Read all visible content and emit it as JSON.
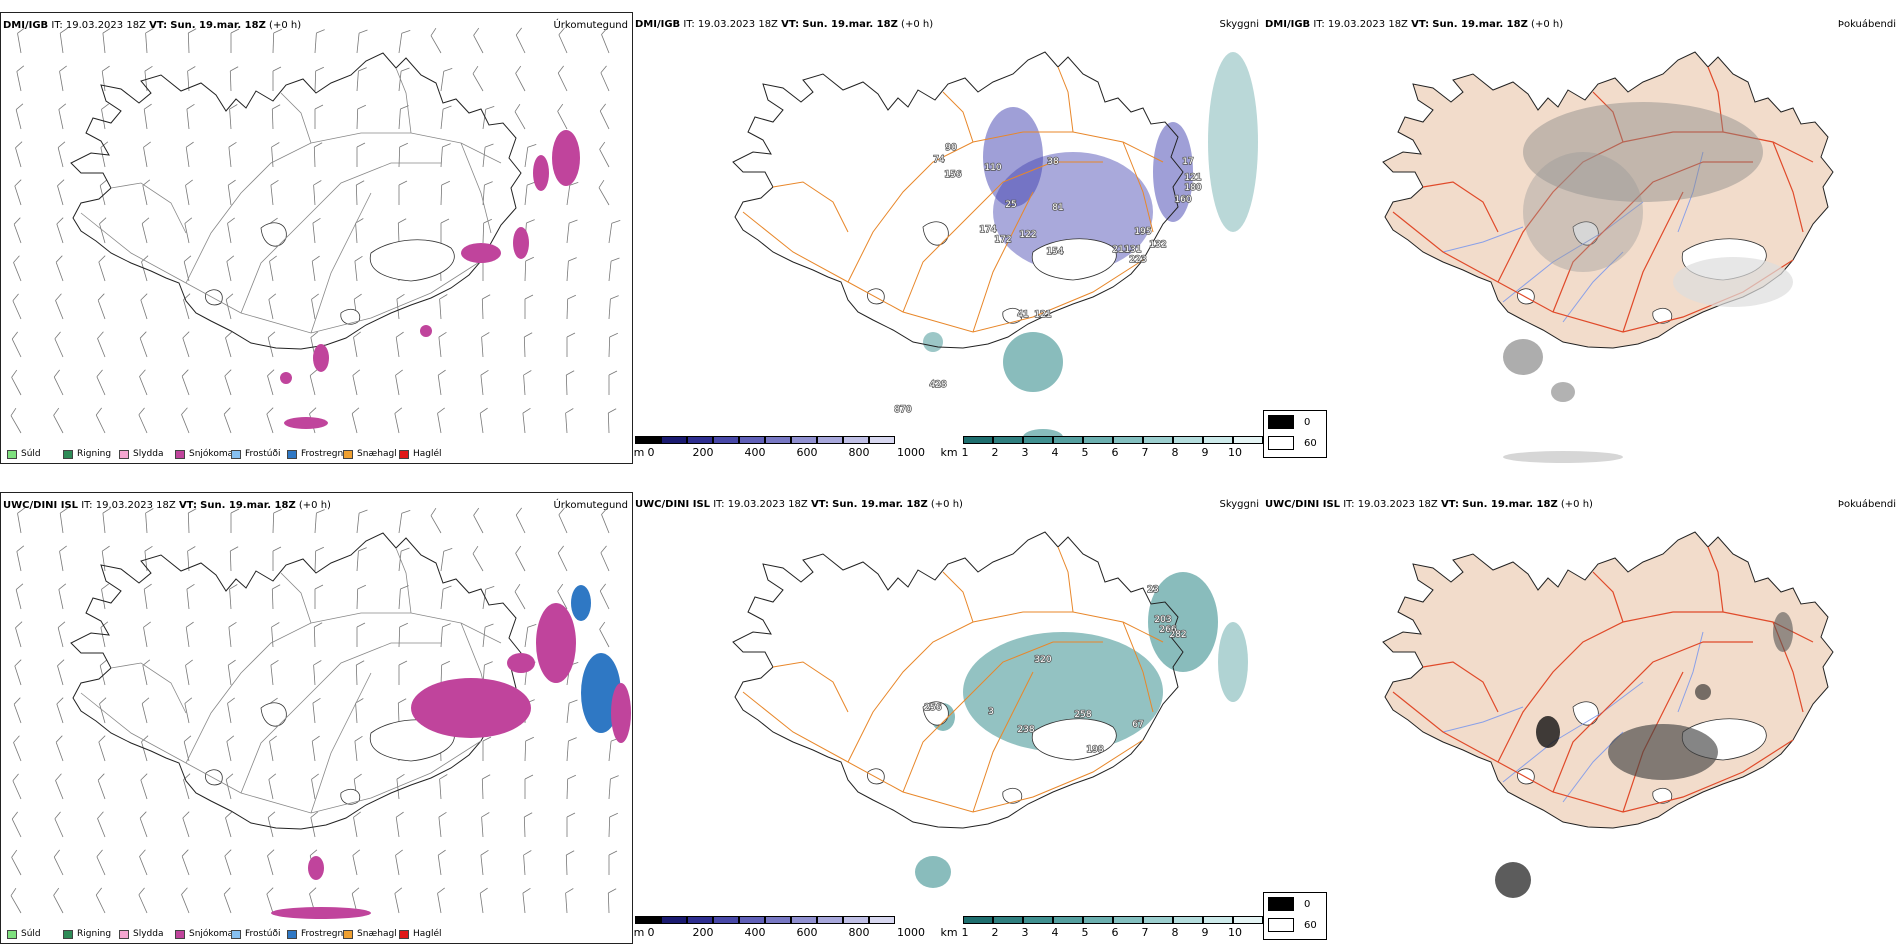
{
  "rows": [
    {
      "model": "DMI/IGB",
      "it_label": "IT:",
      "it_value": "19.03.2023 18Z",
      "vt_label": "VT:",
      "vt_value": "Sun. 19.mar. 18Z",
      "offset": "(+0 h)",
      "panels": [
        {
          "title": "Úrkomutegund"
        },
        {
          "title": "Skyggni",
          "labels": [
            "90",
            "74",
            "156",
            "110",
            "38",
            "25",
            "81",
            "17",
            "180",
            "121",
            "160",
            "174",
            "172",
            "122",
            "154",
            "211",
            "195",
            "223",
            "131",
            "132",
            "41",
            "121",
            "428",
            "870"
          ]
        },
        {
          "title": "Þokuábendi"
        }
      ]
    },
    {
      "model": "UWC/DINI ISL",
      "it_label": "IT:",
      "it_value": "19.03.2023 18Z",
      "vt_label": "VT:",
      "vt_value": "Sun. 19.mar. 18Z",
      "offset": "(+0 h)",
      "panels": [
        {
          "title": "Úrkomutegund"
        },
        {
          "title": "Skyggni",
          "labels": [
            "23",
            "203",
            "266",
            "282",
            "320",
            "256",
            "3",
            "258",
            "238",
            "67",
            "198"
          ]
        },
        {
          "title": "Þokuábendi"
        }
      ]
    }
  ],
  "precip_legend": [
    {
      "label": "Súld",
      "color": "#7fe07f"
    },
    {
      "label": "Rigning",
      "color": "#2e8b57"
    },
    {
      "label": "Slydda",
      "color": "#f4a6d0"
    },
    {
      "label": "Snjókoma",
      "color": "#c0449c"
    },
    {
      "label": "Frostúði",
      "color": "#87c0f0"
    },
    {
      "label": "Frostregn",
      "color": "#2f78c4"
    },
    {
      "label": "Snæhagl",
      "color": "#f0a030"
    },
    {
      "label": "Haglél",
      "color": "#e01818"
    }
  ],
  "vis_scale": {
    "m_unit": "m",
    "m_ticks": [
      "0",
      "200",
      "400",
      "600",
      "800",
      "1000"
    ],
    "m_colors": [
      "#000000",
      "#1a1a70",
      "#2e2e90",
      "#4848a8",
      "#6060b8",
      "#7878c4",
      "#9090d0",
      "#a8a8dc",
      "#c0c0e6",
      "#d8d8f0"
    ],
    "km_unit": "km",
    "km_ticks": [
      "1",
      "2",
      "3",
      "4",
      "5",
      "6",
      "7",
      "8",
      "9",
      "10"
    ],
    "km_colors": [
      "#1e6e6e",
      "#2f7f7f",
      "#409090",
      "#55a0a0",
      "#6cb0b0",
      "#84c0c0",
      "#9ccfcf",
      "#b4dddd",
      "#cceaea",
      "#e4f4f4"
    ]
  },
  "fog_legend": [
    {
      "label": "0",
      "color": "#000000"
    },
    {
      "label": "60",
      "color": "#ffffff"
    }
  ],
  "colors": {
    "land_fog": "#f2dccb",
    "road_orange": "#e8872a",
    "road_red": "#e04a2a",
    "river_blue": "#8aa0e8",
    "snow_magenta": "#c0449c",
    "frz_blue": "#2f78c4",
    "teal": "#3a9090",
    "vis_blue": "#4040b0"
  }
}
